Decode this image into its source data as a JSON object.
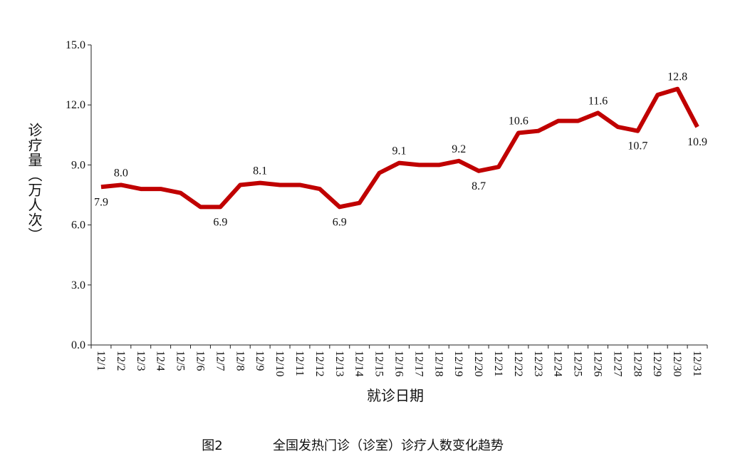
{
  "chart_data": {
    "type": "line",
    "categories": [
      "12/1",
      "12/2",
      "12/3",
      "12/4",
      "12/5",
      "12/6",
      "12/7",
      "12/8",
      "12/9",
      "12/10",
      "12/11",
      "12/12",
      "12/13",
      "12/14",
      "12/15",
      "12/16",
      "12/17",
      "12/18",
      "12/19",
      "12/20",
      "12/21",
      "12/22",
      "12/23",
      "12/24",
      "12/25",
      "12/26",
      "12/27",
      "12/28",
      "12/29",
      "12/30",
      "12/31"
    ],
    "values": [
      7.9,
      8.0,
      7.8,
      7.8,
      7.6,
      6.9,
      6.9,
      8.0,
      8.1,
      8.0,
      8.0,
      7.8,
      6.9,
      7.1,
      8.6,
      9.1,
      9.0,
      9.0,
      9.2,
      8.7,
      8.9,
      10.6,
      10.7,
      11.2,
      11.2,
      11.6,
      10.9,
      10.7,
      12.5,
      12.8,
      10.9
    ],
    "value_labels": [
      "7.9",
      "8.0",
      null,
      null,
      null,
      null,
      "6.9",
      null,
      "8.1",
      null,
      null,
      null,
      "6.9",
      null,
      null,
      "9.1",
      null,
      null,
      "9.2",
      "8.7",
      null,
      "10.6",
      null,
      null,
      null,
      "11.6",
      null,
      "10.7",
      null,
      "12.8",
      "10.9"
    ],
    "color": "#c00000",
    "ylim": [
      0,
      15
    ],
    "yticks": [
      {
        "value": 0,
        "label": "0.0"
      },
      {
        "value": 3,
        "label": "3.0"
      },
      {
        "value": 6,
        "label": "6.0"
      },
      {
        "value": 9,
        "label": "9.0"
      },
      {
        "value": 12,
        "label": "12.0"
      },
      {
        "value": 15,
        "label": "15.0"
      }
    ],
    "y_label": "诊疗量（万人次）",
    "x_label": "就诊日期",
    "figure_number": "图2",
    "caption": "全国发热门诊（诊室）诊疗人数变化趋势"
  }
}
